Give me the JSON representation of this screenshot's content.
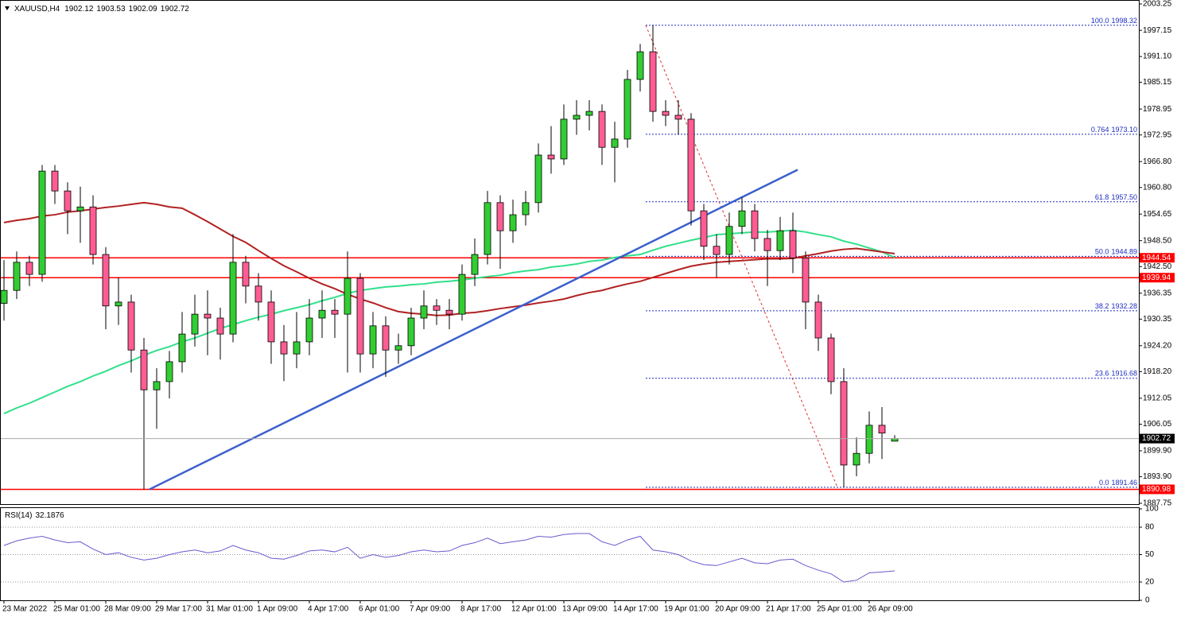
{
  "chart_data": {
    "type": "candlestick",
    "symbol": "XAUUSD,H4",
    "up_color": "#32cd32",
    "down_color": "#ff5c93",
    "categories": [
      "23 Mar 2022",
      null,
      null,
      null,
      "25 Mar 01:00",
      null,
      null,
      null,
      "28 Mar 09:00",
      null,
      null,
      null,
      "29 Mar 17:00",
      null,
      null,
      null,
      "31 Mar 01:00",
      null,
      null,
      null,
      "1 Apr 09:00",
      null,
      null,
      null,
      "4 Apr 17:00",
      null,
      null,
      null,
      "6 Apr 01:00",
      null,
      null,
      null,
      "7 Apr 09:00",
      null,
      null,
      null,
      "8 Apr 17:00",
      null,
      null,
      null,
      "12 Apr 01:00",
      null,
      null,
      null,
      "13 Apr 09:00",
      null,
      null,
      null,
      "14 Apr 17:00",
      null,
      null,
      null,
      "19 Apr 01:00",
      null,
      null,
      null,
      "20 Apr 09:00",
      null,
      null,
      null,
      "21 Apr 17:00",
      null,
      null,
      null,
      "25 Apr 01:00",
      null,
      null,
      null,
      "26 Apr 09:00",
      null,
      null
    ],
    "candles": [
      [
        1934.0,
        1944.0,
        1930.0,
        1937.0
      ],
      [
        1937.0,
        1946.0,
        1935.0,
        1943.5
      ],
      [
        1943.5,
        1945.0,
        1938.0,
        1940.7
      ],
      [
        1940.7,
        1966.0,
        1939.0,
        1964.6
      ],
      [
        1964.6,
        1966.0,
        1957.0,
        1960.0
      ],
      [
        1960.0,
        1962.0,
        1950.0,
        1955.4
      ],
      [
        1955.4,
        1961.0,
        1948.0,
        1956.3
      ],
      [
        1956.3,
        1959.0,
        1943.0,
        1945.3
      ],
      [
        1945.3,
        1947.0,
        1928.0,
        1933.4
      ],
      [
        1933.4,
        1940.0,
        1929.0,
        1934.3
      ],
      [
        1934.3,
        1936.0,
        1918.0,
        1923.2
      ],
      [
        1923.2,
        1926.0,
        1890.98,
        1914.0
      ],
      [
        1914.0,
        1919.0,
        1905.0,
        1915.9
      ],
      [
        1915.9,
        1923.0,
        1912.0,
        1920.5
      ],
      [
        1920.5,
        1932.0,
        1918.0,
        1926.9
      ],
      [
        1926.9,
        1936.0,
        1924.0,
        1931.5
      ],
      [
        1931.5,
        1937.0,
        1922.0,
        1930.6
      ],
      [
        1930.6,
        1933.0,
        1921.0,
        1926.9
      ],
      [
        1926.9,
        1950.0,
        1925.0,
        1943.5
      ],
      [
        1943.5,
        1945.0,
        1934.0,
        1938.0
      ],
      [
        1938.0,
        1941.0,
        1930.0,
        1934.3
      ],
      [
        1934.3,
        1937.0,
        1920.0,
        1925.1
      ],
      [
        1925.1,
        1929.0,
        1916.0,
        1922.3
      ],
      [
        1922.3,
        1932.0,
        1919.0,
        1925.1
      ],
      [
        1925.1,
        1935.0,
        1922.0,
        1930.6
      ],
      [
        1930.6,
        1937.0,
        1926.0,
        1932.4
      ],
      [
        1932.4,
        1935.0,
        1926.0,
        1931.5
      ],
      [
        1931.5,
        1946.0,
        1918.0,
        1939.8
      ],
      [
        1939.8,
        1941.0,
        1918.0,
        1922.3
      ],
      [
        1922.3,
        1932.0,
        1919.0,
        1928.8
      ],
      [
        1928.8,
        1931.0,
        1917.0,
        1923.2
      ],
      [
        1923.2,
        1927.0,
        1920.0,
        1924.2
      ],
      [
        1924.2,
        1933.0,
        1922.0,
        1930.6
      ],
      [
        1930.6,
        1937.0,
        1928.0,
        1933.4
      ],
      [
        1933.4,
        1935.0,
        1929.0,
        1932.4
      ],
      [
        1932.4,
        1935.0,
        1928.0,
        1931.5
      ],
      [
        1931.5,
        1943.0,
        1930.0,
        1940.7
      ],
      [
        1940.7,
        1949.0,
        1938.0,
        1945.3
      ],
      [
        1945.3,
        1960.0,
        1943.0,
        1957.3
      ],
      [
        1957.3,
        1959.0,
        1942.0,
        1950.8
      ],
      [
        1950.8,
        1958.0,
        1948.0,
        1954.5
      ],
      [
        1954.5,
        1960.0,
        1952.0,
        1957.3
      ],
      [
        1957.3,
        1971.0,
        1955.0,
        1968.3
      ],
      [
        1968.3,
        1975.0,
        1964.0,
        1967.4
      ],
      [
        1967.4,
        1980.0,
        1966.0,
        1976.6
      ],
      [
        1976.6,
        1981.0,
        1973.0,
        1977.5
      ],
      [
        1977.5,
        1981.0,
        1974.0,
        1978.4
      ],
      [
        1978.4,
        1980.0,
        1966.0,
        1970.1
      ],
      [
        1970.1,
        1976.0,
        1962.0,
        1972.0
      ],
      [
        1972.0,
        1988.0,
        1970.0,
        1985.8
      ],
      [
        1985.8,
        1994.0,
        1983.0,
        1992.2
      ],
      [
        1992.2,
        1998.32,
        1976.0,
        1978.4
      ],
      [
        1978.4,
        1981.0,
        1975.0,
        1977.5
      ],
      [
        1977.5,
        1981.0,
        1973.0,
        1976.6
      ],
      [
        1976.6,
        1978.0,
        1952.0,
        1955.4
      ],
      [
        1955.4,
        1957.0,
        1944.0,
        1947.2
      ],
      [
        1947.2,
        1950.0,
        1940.0,
        1945.3
      ],
      [
        1945.3,
        1955.0,
        1943.0,
        1951.8
      ],
      [
        1951.8,
        1958.5,
        1950.0,
        1955.4
      ],
      [
        1955.4,
        1957.0,
        1946.0,
        1949.0
      ],
      [
        1949.0,
        1951.0,
        1938.0,
        1946.2
      ],
      [
        1946.2,
        1954.0,
        1944.0,
        1950.8
      ],
      [
        1950.8,
        1955.0,
        1941.0,
        1944.5
      ],
      [
        1944.5,
        1946.0,
        1928.0,
        1934.3
      ],
      [
        1934.3,
        1936.0,
        1923.0,
        1926.0
      ],
      [
        1926.0,
        1927.0,
        1913.0,
        1915.9
      ],
      [
        1915.9,
        1919.0,
        1891.46,
        1896.6
      ],
      [
        1896.6,
        1903.0,
        1894.0,
        1899.3
      ],
      [
        1899.3,
        1909.0,
        1897.0,
        1905.8
      ],
      [
        1905.8,
        1910.0,
        1898.0,
        1904.0
      ],
      [
        1902.12,
        1903.53,
        1902.09,
        1902.72
      ]
    ],
    "moving_averages": [
      {
        "color": "#32e08a",
        "values": [
          1908.5,
          1909.8,
          1910.9,
          1912.2,
          1913.5,
          1914.8,
          1915.9,
          1917.2,
          1918.3,
          1919.6,
          1920.7,
          1922.0,
          1923.1,
          1924.0,
          1925.1,
          1926.0,
          1927.1,
          1928.2,
          1929.1,
          1930.0,
          1930.8,
          1931.5,
          1932.3,
          1933.0,
          1933.7,
          1934.6,
          1935.4,
          1936.3,
          1937.0,
          1937.4,
          1937.8,
          1938.0,
          1938.3,
          1938.5,
          1938.9,
          1939.1,
          1939.4,
          1939.8,
          1940.2,
          1940.5,
          1941.1,
          1941.5,
          1941.8,
          1942.4,
          1942.7,
          1943.1,
          1943.7,
          1944.0,
          1944.6,
          1945.0,
          1945.3,
          1946.3,
          1947.2,
          1947.9,
          1948.6,
          1949.2,
          1949.9,
          1950.1,
          1950.3,
          1950.5,
          1950.5,
          1950.7,
          1950.9,
          1950.5,
          1949.9,
          1949.4,
          1948.4,
          1947.7,
          1946.8,
          1945.9,
          1944.6
        ]
      },
      {
        "color": "#b22222",
        "values": [
          1952.7,
          1953.2,
          1953.6,
          1954.2,
          1954.5,
          1955.1,
          1955.4,
          1955.8,
          1956.2,
          1956.5,
          1956.9,
          1957.3,
          1956.9,
          1956.3,
          1956.0,
          1954.5,
          1952.9,
          1951.2,
          1949.5,
          1948.1,
          1946.2,
          1944.4,
          1942.7,
          1941.3,
          1939.8,
          1938.5,
          1937.4,
          1936.1,
          1935.0,
          1934.1,
          1933.0,
          1932.1,
          1931.7,
          1931.5,
          1931.2,
          1931.3,
          1931.7,
          1931.9,
          1932.3,
          1932.8,
          1933.2,
          1933.6,
          1934.1,
          1934.5,
          1935.0,
          1935.8,
          1936.5,
          1937.0,
          1937.8,
          1938.5,
          1939.1,
          1940.0,
          1940.9,
          1941.8,
          1942.6,
          1943.1,
          1943.5,
          1943.7,
          1943.9,
          1944.1,
          1944.3,
          1944.3,
          1944.4,
          1945.0,
          1945.5,
          1946.1,
          1946.5,
          1946.7,
          1946.3,
          1945.9,
          1945.5
        ]
      }
    ],
    "levels": [
      1944.54,
      1939.94,
      1890.98
    ],
    "level_color": "#ff0000",
    "trendline": {
      "color": "#3a5fcd",
      "values": [
        1890.98,
        1964.9
      ]
    },
    "fibonacci": [
      {
        "level": "100.0",
        "value": 1998.32
      },
      {
        "level": "0.764",
        "value": 1973.1,
        "label": "1973.10"
      },
      {
        "level": "61.8",
        "value": 1957.5,
        "label": "1957.50"
      },
      {
        "level": "50.0",
        "value": 1944.89
      },
      {
        "level": "38.2",
        "value": 1932.28
      },
      {
        "level": "23.6",
        "value": 1916.68
      },
      {
        "level": "0.0",
        "value": 1891.46
      }
    ],
    "fib_color": "#1c2dbe",
    "ylim": [
      1887.75,
      2003.25
    ],
    "yticks": [
      2003.25,
      1997.15,
      {
        "value": 1991.1,
        "label": "1991.10"
      },
      1985.15,
      1978.95,
      1972.95,
      {
        "value": 1966.8,
        "label": "1966.80"
      },
      {
        "value": 1960.8,
        "label": "1960.80"
      },
      1954.65,
      {
        "value": 1948.5,
        "label": "1948.50"
      },
      {
        "value": 1942.5,
        "label": "1942.50"
      },
      1936.35,
      1930.35,
      {
        "value": 1924.2,
        "label": "1924.20"
      },
      {
        "value": 1918.2,
        "label": "1918.20"
      },
      1912.05,
      1906.05,
      {
        "value": 1899.9,
        "label": "1899.90"
      },
      {
        "value": 1893.9,
        "label": "1893.90"
      },
      1887.75
    ],
    "rsi": {
      "name": "RSI(14)",
      "color": "#6a5acd",
      "lim": [
        0,
        100
      ],
      "ticks": [
        100,
        80,
        50,
        20,
        0
      ],
      "values": [
        60,
        65,
        68,
        70,
        66,
        63,
        64,
        56,
        50,
        52,
        47,
        44,
        46,
        50,
        53,
        55,
        52,
        54,
        60,
        55,
        52,
        46,
        45,
        49,
        54,
        55,
        53,
        58,
        46,
        50,
        47,
        49,
        53,
        55,
        53,
        54,
        60,
        63,
        68,
        62,
        64,
        66,
        70,
        69,
        72,
        73,
        73,
        64,
        60,
        66,
        70,
        55,
        53,
        50,
        43,
        39,
        38,
        42,
        46,
        41,
        40,
        44,
        45,
        38,
        33,
        29,
        20,
        22,
        30,
        31,
        32.1876
      ]
    }
  }
}
